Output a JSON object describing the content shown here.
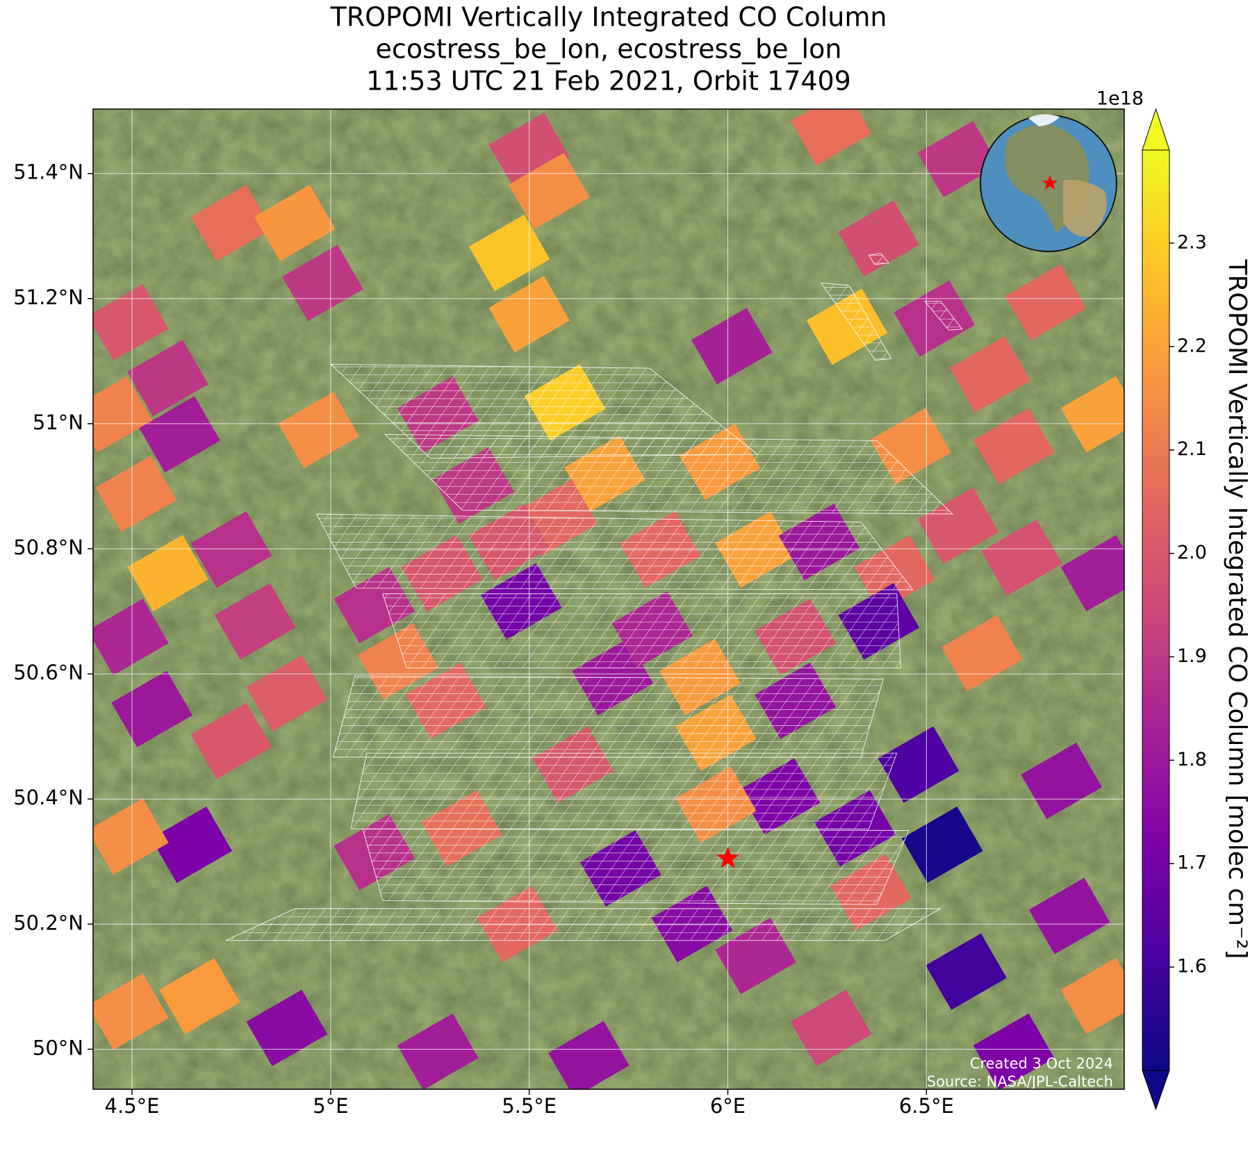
{
  "chart_data": {
    "type": "map",
    "title": [
      "TROPOMI Vertically Integrated CO Column",
      "ecostress_be_lon, ecostress_be_lon",
      "11:53 UTC 21 Feb 2021, Orbit 17409"
    ],
    "xlim": [
      4.402,
      6.998
    ],
    "ylim": [
      49.936,
      51.503
    ],
    "xticks": [
      {
        "value": 4.5,
        "label": "4.5°E"
      },
      {
        "value": 5,
        "label": "5°E"
      },
      {
        "value": 5.5,
        "label": "5.5°E"
      },
      {
        "value": 6,
        "label": "6°E"
      },
      {
        "value": 6.5,
        "label": "6.5°E"
      }
    ],
    "yticks": [
      {
        "value": 50,
        "label": "50°N"
      },
      {
        "value": 50.2,
        "label": "50.2°N"
      },
      {
        "value": 50.4,
        "label": "50.4°N"
      },
      {
        "value": 50.6,
        "label": "50.6°N"
      },
      {
        "value": 50.8,
        "label": "50.8°N"
      },
      {
        "value": 51,
        "label": "51°N"
      },
      {
        "value": 51.2,
        "label": "51.2°N"
      },
      {
        "value": 51.4,
        "label": "51.4°N"
      }
    ],
    "grid": true,
    "colorbar": {
      "label": "TROPOMI Vertically Integrated CO Column [molec cm⁻²]",
      "offset_label": "1e18",
      "colormap": "plasma",
      "lim": [
        1.5,
        2.39
      ],
      "ticks": [
        1.6,
        1.7,
        1.8,
        1.9,
        {
          "value": 2,
          "label": "2.0"
        },
        2.1,
        2.2,
        2.3
      ]
    },
    "cells": {
      "lon": [
        5.5,
        5.55,
        4.75,
        4.91,
        5.45,
        4.98,
        5.5,
        6.01,
        6.3,
        4.49,
        4.59,
        5.59,
        4.97,
        5.27,
        4.45,
        4.62,
        4.51,
        5.36,
        5.69,
        5.98,
        4.75,
        4.59,
        5.48,
        5.28,
        5.83,
        6.07,
        6.23,
        4.49,
        4.81,
        5.17,
        5.93,
        6.17,
        4.89,
        4.75,
        4.55,
        5.29,
        5.97,
        6.17,
        5.33,
        5.61,
        4.65,
        4.49,
        6.13,
        5.97,
        6.54,
        6.48,
        6.36,
        5.11,
        5.73,
        5.91,
        5.47,
        6.07,
        4.67,
        4.49,
        4.89,
        5.27,
        5.65,
        6.26,
        6.6,
        6.72,
        6.86,
        6.94,
        6.84,
        6.64,
        6.74,
        6.94,
        6.8,
        6.38,
        6.26,
        6.58,
        6.66,
        6.46,
        6.52,
        6.72,
        6.58,
        6.94,
        6.42,
        6.38,
        5.71,
        5.81,
        5.57,
        5.45,
        5.11,
        6.32
      ],
      "lat": [
        51.436,
        51.372,
        51.321,
        51.321,
        51.273,
        51.225,
        51.175,
        51.124,
        51.155,
        51.162,
        51.073,
        51.034,
        50.99,
        51.015,
        51.015,
        50.983,
        50.888,
        50.901,
        50.92,
        50.939,
        50.799,
        50.761,
        50.716,
        50.761,
        50.799,
        50.799,
        50.811,
        50.659,
        50.684,
        50.62,
        50.595,
        50.659,
        50.569,
        50.493,
        50.544,
        50.557,
        50.506,
        50.557,
        50.353,
        50.455,
        50.327,
        50.34,
        50.404,
        50.391,
        50.327,
        50.455,
        50.251,
        50.315,
        50.289,
        50.2,
        50.2,
        50.149,
        50.085,
        50.06,
        50.034,
        49.996,
        49.984,
        50.034,
        50.124,
        49.996,
        50.213,
        50.085,
        50.429,
        50.633,
        50.786,
        51.015,
        51.194,
        51.296,
        51.474,
        51.423,
        51.079,
        50.964,
        51.168,
        50.964,
        50.837,
        50.761,
        50.761,
        50.684,
        50.595,
        50.671,
        50.85,
        50.811,
        50.71,
        50.353
      ],
      "values": [
        1.97,
        2.15,
        2.07,
        2.17,
        2.28,
        1.9,
        2.2,
        1.83,
        2.27,
        2.0,
        1.9,
        2.3,
        2.15,
        1.9,
        2.12,
        1.82,
        2.12,
        1.9,
        2.2,
        2.18,
        1.88,
        2.24,
        1.7,
        2.0,
        2.05,
        2.2,
        1.8,
        1.85,
        1.92,
        2.12,
        2.18,
        1.98,
        2.02,
        2.0,
        1.8,
        2.05,
        2.2,
        1.78,
        2.07,
        2.0,
        1.72,
        2.15,
        1.72,
        2.15,
        1.52,
        1.62,
        2.05,
        1.88,
        1.7,
        1.75,
        2.05,
        1.85,
        2.18,
        2.15,
        1.75,
        1.82,
        1.78,
        1.95,
        1.6,
        1.72,
        1.78,
        2.15,
        1.78,
        2.12,
        1.98,
        2.2,
        2.05,
        1.97,
        2.07,
        1.9,
        2.05,
        2.15,
        1.88,
        2.05,
        2.0,
        1.82,
        2.05,
        1.65,
        1.8,
        1.85,
        2.05,
        2.0,
        1.88,
        1.7
      ]
    },
    "site": {
      "lon": 6.0,
      "lat": 50.305,
      "color": "#ff0000"
    },
    "annotations": [
      "Created 3 Oct 2024",
      "Source: NASA/JPL-Caltech"
    ]
  }
}
